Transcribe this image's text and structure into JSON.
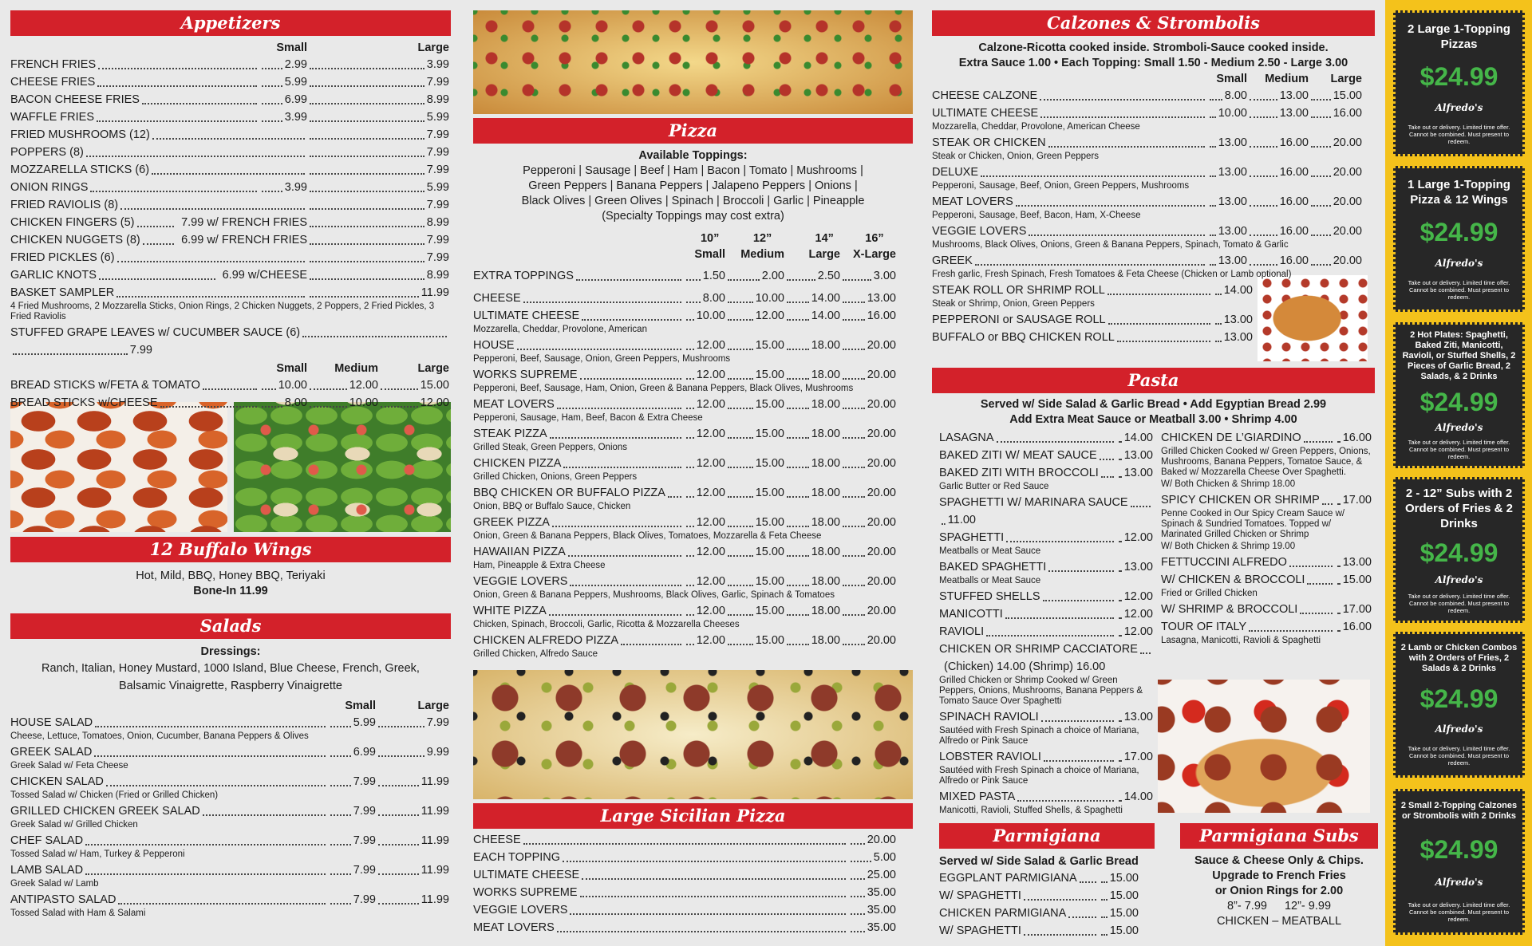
{
  "appetizers": {
    "title": "Appetizers",
    "groups": [
      {
        "headers": [
          "Small",
          "Large"
        ],
        "items": [
          {
            "name": "FRENCH FRIES",
            "prices": [
              "2.99",
              "3.99"
            ]
          },
          {
            "name": "CHEESE FRIES",
            "prices": [
              "5.99",
              "7.99"
            ]
          },
          {
            "name": "BACON CHEESE FRIES",
            "prices": [
              "6.99",
              "8.99"
            ]
          },
          {
            "name": "WAFFLE FRIES",
            "prices": [
              "3.99",
              "5.99"
            ]
          },
          {
            "name": "FRIED MUSHROOMS (12)",
            "prices": [
              "7.99"
            ]
          },
          {
            "name": "POPPERS (8)",
            "prices": [
              "7.99"
            ]
          },
          {
            "name": "MOZZARELLA STICKS (6)",
            "prices": [
              "7.99"
            ]
          },
          {
            "name": "ONION RINGS",
            "prices": [
              "3.99",
              "5.99"
            ]
          },
          {
            "name": "FRIED RAVIOLIS (8)",
            "prices": [
              "7.99"
            ]
          },
          {
            "name": "CHICKEN FINGERS (5)",
            "prices": [
              "7.99 w/ FRENCH FRIES",
              "8.99"
            ]
          },
          {
            "name": "CHICKEN NUGGETS (8)",
            "prices": [
              "6.99 w/ FRENCH FRIES",
              "7.99"
            ]
          },
          {
            "name": "FRIED PICKLES (6)",
            "prices": [
              "7.99"
            ]
          },
          {
            "name": "GARLIC KNOTS",
            "prices": [
              "6.99 w/CHEESE",
              "8.99"
            ]
          },
          {
            "name": "BASKET SAMPLER",
            "prices": [
              "11.99"
            ],
            "desc": "4 Fried Mushrooms, 2 Mozzarella Sticks, Onion Rings, 2 Chicken Nuggets, 2 Poppers, 2 Fried Pickles, 3 Fried Raviolis"
          },
          {
            "name": "STUFFED GRAPE LEAVES w/ CUCUMBER SAUCE (6)",
            "prices": [
              "7.99"
            ]
          }
        ]
      },
      {
        "headers": [
          "Small",
          "Medium",
          "Large"
        ],
        "items": [
          {
            "name": "BREAD STICKS w/FETA & TOMATO",
            "prices": [
              "10.00",
              "12.00",
              "15.00"
            ]
          },
          {
            "name": "BREAD STICKS w/CHEESE",
            "prices": [
              "8.00",
              "10.00",
              "12.00"
            ]
          }
        ]
      }
    ]
  },
  "wings": {
    "title": "12 Buffalo Wings",
    "flavors": "Hot, Mild, BBQ, Honey BBQ, Teriyaki",
    "price": "Bone-In 11.99"
  },
  "salads": {
    "title": "Salads",
    "dressings_label": "Dressings:",
    "dressings": "Ranch, Italian, Honey Mustard, 1000 Island, Blue Cheese, French, Greek, Balsamic Vinaigrette, Raspberry Vinaigrette",
    "headers": [
      "Small",
      "Large"
    ],
    "items": [
      {
        "name": "HOUSE SALAD",
        "prices": [
          "5.99",
          "7.99"
        ],
        "desc": "Cheese, Lettuce, Tomatoes, Onion, Cucumber, Banana Peppers & Olives"
      },
      {
        "name": "GREEK SALAD",
        "prices": [
          "6.99",
          "9.99"
        ],
        "desc": "Greek Salad w/ Feta Cheese"
      },
      {
        "name": "CHICKEN SALAD",
        "prices": [
          "7.99",
          "11.99"
        ],
        "desc": "Tossed Salad w/ Chicken (Fried or Grilled Chicken)"
      },
      {
        "name": "GRILLED CHICKEN GREEK SALAD",
        "prices": [
          "7.99",
          "11.99"
        ],
        "desc": "Greek Salad w/ Grilled Chicken"
      },
      {
        "name": "CHEF SALAD",
        "prices": [
          "7.99",
          "11.99"
        ],
        "desc": "Tossed Salad w/ Ham, Turkey & Pepperoni"
      },
      {
        "name": "LAMB SALAD",
        "prices": [
          "7.99",
          "11.99"
        ],
        "desc": "Greek Salad w/ Lamb"
      },
      {
        "name": "ANTIPASTO SALAD",
        "prices": [
          "7.99",
          "11.99"
        ],
        "desc": "Tossed Salad with Ham & Salami"
      }
    ]
  },
  "pizza": {
    "title": "Pizza",
    "toppings_label": "Available Toppings:",
    "toppings": [
      "Pepperoni | Sausage | Beef | Ham | Bacon | Tomato | Mushrooms |",
      "Green Peppers | Banana Peppers | Jalapeno Peppers | Onions |",
      "Black Olives | Green Olives | Spinach | Broccoli | Garlic | Pineapple"
    ],
    "note": "(Specialty Toppings may cost extra)",
    "headers": [
      {
        "size": "10”",
        "label": "Small"
      },
      {
        "size": "12”",
        "label": "Medium"
      },
      {
        "size": "14”",
        "label": "Large"
      },
      {
        "size": "16”",
        "label": "X-Large"
      }
    ],
    "extra": [
      {
        "name": "EXTRA TOPPINGS",
        "prices": [
          "1.50",
          "2.00",
          "2.50",
          "3.00"
        ]
      }
    ],
    "items": [
      {
        "name": "CHEESE",
        "prices": [
          "8.00",
          "10.00",
          "14.00",
          "13.00"
        ]
      },
      {
        "name": "ULTIMATE CHEESE",
        "prices": [
          "10.00",
          "12.00",
          "14.00",
          "16.00"
        ],
        "desc": "Mozzarella, Cheddar, Provolone, American"
      },
      {
        "name": "HOUSE",
        "prices": [
          "12.00",
          "15.00",
          "18.00",
          "20.00"
        ],
        "desc": "Pepperoni, Beef, Sausage, Onion, Green Peppers, Mushrooms"
      },
      {
        "name": "WORKS SUPREME",
        "prices": [
          "12.00",
          "15.00",
          "18.00",
          "20.00"
        ],
        "desc": "Pepperoni, Beef, Sausage, Ham, Onion, Green & Banana Peppers, Black Olives, Mushrooms"
      },
      {
        "name": "MEAT LOVERS",
        "prices": [
          "12.00",
          "15.00",
          "18.00",
          "20.00"
        ],
        "desc": "Pepperoni, Sausage, Ham, Beef, Bacon & Extra Cheese"
      },
      {
        "name": "STEAK PIZZA",
        "prices": [
          "12.00",
          "15.00",
          "18.00",
          "20.00"
        ],
        "desc": "Grilled Steak, Green Peppers, Onions"
      },
      {
        "name": "CHICKEN PIZZA",
        "prices": [
          "12.00",
          "15.00",
          "18.00",
          "20.00"
        ],
        "desc": "Grilled Chicken, Onions, Green Peppers"
      },
      {
        "name": "BBQ CHICKEN OR BUFFALO PIZZA",
        "prices": [
          "12.00",
          "15.00",
          "18.00",
          "20.00"
        ],
        "desc": "Onion, BBQ or Buffalo Sauce, Chicken"
      },
      {
        "name": "GREEK PIZZA",
        "prices": [
          "12.00",
          "15.00",
          "18.00",
          "20.00"
        ],
        "desc": "Onion, Green & Banana Peppers, Black Olives, Tomatoes, Mozzarella & Feta Cheese"
      },
      {
        "name": "HAWAIIAN PIZZA",
        "prices": [
          "12.00",
          "15.00",
          "18.00",
          "20.00"
        ],
        "desc": "Ham, Pineapple & Extra Cheese"
      },
      {
        "name": "VEGGIE LOVERS",
        "prices": [
          "12.00",
          "15.00",
          "18.00",
          "20.00"
        ],
        "desc": "Onion, Green & Banana Peppers, Mushrooms, Black Olives, Garlic, Spinach & Tomatoes"
      },
      {
        "name": "WHITE PIZZA",
        "prices": [
          "12.00",
          "15.00",
          "18.00",
          "20.00"
        ],
        "desc": "Chicken, Spinach, Broccoli, Garlic, Ricotta & Mozzarella Cheeses"
      },
      {
        "name": "CHICKEN ALFREDO PIZZA",
        "prices": [
          "12.00",
          "15.00",
          "18.00",
          "20.00"
        ],
        "desc": "Grilled Chicken, Alfredo Sauce"
      }
    ]
  },
  "sicilian": {
    "title": "Large Sicilian Pizza",
    "items": [
      {
        "name": "CHEESE",
        "prices": [
          "20.00"
        ]
      },
      {
        "name": "EACH TOPPING",
        "prices": [
          "5.00"
        ]
      },
      {
        "name": "ULTIMATE CHEESE",
        "prices": [
          "25.00"
        ]
      },
      {
        "name": "WORKS SUPREME",
        "prices": [
          "35.00"
        ]
      },
      {
        "name": "VEGGIE LOVERS",
        "prices": [
          "35.00"
        ]
      },
      {
        "name": "MEAT LOVERS",
        "prices": [
          "35.00"
        ]
      }
    ]
  },
  "calzones": {
    "title": "Calzones & Strombolis",
    "notes": [
      "Calzone-Ricotta cooked inside. Stromboli-Sauce cooked inside.",
      "Extra Sauce 1.00 • Each Topping: Small 1.50 - Medium 2.50 - Large 3.00"
    ],
    "headers": [
      "Small",
      "Medium",
      "Large"
    ],
    "items": [
      {
        "name": "CHEESE CALZONE",
        "prices": [
          "8.00",
          "13.00",
          "15.00"
        ]
      },
      {
        "name": "ULTIMATE CHEESE",
        "prices": [
          "10.00",
          "13.00",
          "16.00"
        ],
        "desc": "Mozzarella, Cheddar, Provolone, American Cheese"
      },
      {
        "name": "STEAK OR CHICKEN",
        "prices": [
          "13.00",
          "16.00",
          "20.00"
        ],
        "desc": "Steak or Chicken, Onion, Green Peppers"
      },
      {
        "name": "DELUXE",
        "prices": [
          "13.00",
          "16.00",
          "20.00"
        ],
        "desc": "Pepperoni, Sausage, Beef, Onion, Green Peppers, Mushrooms"
      },
      {
        "name": "MEAT LOVERS",
        "prices": [
          "13.00",
          "16.00",
          "20.00"
        ],
        "desc": "Pepperoni, Sausage, Beef, Bacon, Ham, X-Cheese"
      },
      {
        "name": "VEGGIE LOVERS",
        "prices": [
          "13.00",
          "16.00",
          "20.00"
        ],
        "desc": "Mushrooms, Black Olives, Onions, Green & Banana Peppers, Spinach, Tomato & Garlic"
      },
      {
        "name": "GREEK",
        "prices": [
          "13.00",
          "16.00",
          "20.00"
        ],
        "desc": "Fresh garlic, Fresh Spinach, Fresh Tomatoes & Feta Cheese (Chicken or Lamb optional)"
      }
    ],
    "rolls": [
      {
        "name": "STEAK ROLL OR SHRIMP ROLL",
        "prices": [
          "14.00"
        ],
        "desc": "Steak or Shrimp, Onion, Green Peppers"
      },
      {
        "name": "PEPPERONI or SAUSAGE ROLL",
        "prices": [
          "13.00"
        ]
      },
      {
        "name": "BUFFALO or BBQ CHICKEN ROLL",
        "prices": [
          "13.00"
        ]
      }
    ]
  },
  "pasta": {
    "title": "Pasta",
    "notes": [
      "Served w/ Side Salad & Garlic Bread • Add Egyptian Bread 2.99",
      "Add Extra Meat Sauce or Meatball 3.00 • Shrimp 4.00"
    ],
    "left": [
      {
        "name": "LASAGNA",
        "prices": [
          "14.00"
        ]
      },
      {
        "name": "BAKED ZITI W/ MEAT SAUCE",
        "prices": [
          "13.00"
        ]
      },
      {
        "name": "BAKED ZITI WITH BROCCOLI",
        "prices": [
          "13.00"
        ],
        "desc": "Garlic Butter or Red Sauce"
      },
      {
        "name": "SPAGHETTI W/ MARINARA SAUCE",
        "prices": [
          "11.00"
        ]
      },
      {
        "name": "SPAGHETTI",
        "prices": [
          "12.00"
        ],
        "desc": "Meatballs or Meat Sauce"
      },
      {
        "name": "BAKED SPAGHETTI",
        "prices": [
          "13.00"
        ],
        "desc": "Meatballs or Meat Sauce"
      },
      {
        "name": "STUFFED SHELLS",
        "prices": [
          "12.00"
        ]
      },
      {
        "name": "MANICOTTI",
        "prices": [
          "12.00"
        ]
      },
      {
        "name": "RAVIOLI",
        "prices": [
          "12.00"
        ]
      },
      {
        "name": "CHICKEN OR SHRIMP CACCIATORE",
        "prices": [
          "(Chicken) 14.00 (Shrimp) 16.00"
        ],
        "desc": "Grilled Chicken or Shrimp Cooked w/ Green Peppers, Onions, Mushrooms, Banana Peppers & Tomato Sauce Over Spaghetti"
      },
      {
        "name": "SPINACH RAVIOLI",
        "prices": [
          "13.00"
        ],
        "desc": "Sautéed with Fresh Spinach a choice of Mariana, Alfredo or Pink Sauce"
      },
      {
        "name": "LOBSTER RAVIOLI",
        "prices": [
          "17.00"
        ],
        "desc": "Sautéed with Fresh Spinach a choice of Mariana, Alfredo or Pink Sauce"
      },
      {
        "name": "MIXED PASTA",
        "prices": [
          "14.00"
        ],
        "desc": "Manicotti, Ravioli, Stuffed Shells, & Spaghetti"
      }
    ],
    "right": [
      {
        "name": "CHICKEN DE L’GIARDINO",
        "prices": [
          "16.00"
        ],
        "desc": "Grilled Chicken Cooked w/ Green Peppers, Onions, Mushrooms, Banana Peppers, Tomatoe Sauce, & Baked w/ Mozzarella Cheese Over Spaghetti.",
        "extra": "W/ Both Chicken & Shrimp 18.00"
      },
      {
        "name": "SPICY CHICKEN OR SHRIMP",
        "prices": [
          "17.00"
        ],
        "desc": "Penne Cooked in Our Spicy Cream Sauce w/ Spinach & Sundried Tomatoes. Topped w/ Marinated Grilled Chicken or Shrimp",
        "extra": "W/ Both Chicken & Shrimp 19.00"
      },
      {
        "name": "FETTUCCINI ALFREDO",
        "prices": [
          "13.00"
        ]
      },
      {
        "name": "W/ CHICKEN & BROCCOLI",
        "prices": [
          "15.00"
        ],
        "desc": "Fried or Grilled Chicken"
      },
      {
        "name": "W/ SHRIMP & BROCCOLI",
        "prices": [
          "17.00"
        ]
      },
      {
        "name": "TOUR OF ITALY",
        "prices": [
          "16.00"
        ],
        "desc": "Lasagna, Manicotti, Ravioli & Spaghetti"
      }
    ]
  },
  "parmigiana": {
    "title": "Parmigiana",
    "subtitle": "Served w/ Side Salad & Garlic Bread",
    "items": [
      {
        "name": "EGGPLANT PARMIGIANA",
        "prices": [
          "15.00"
        ]
      },
      {
        "name": "W/ SPAGHETTI",
        "prices": [
          "15.00"
        ]
      },
      {
        "name": "CHICKEN PARMIGIANA",
        "prices": [
          "15.00"
        ]
      },
      {
        "name": "W/ SPAGHETTI",
        "prices": [
          "15.00"
        ]
      }
    ]
  },
  "parmigiana_subs": {
    "title": "Parmigiana Subs",
    "lines": [
      "Sauce & Cheese Only & Chips.",
      "Upgrade to French Fries",
      "or Onion Rings for 2.00"
    ],
    "sizes": [
      "8”- 7.99",
      "12”- 9.99"
    ],
    "kinds": "CHICKEN – MEATBALL"
  },
  "coupons": [
    {
      "title": "2 Large 1-Topping Pizzas",
      "price": "$24.99",
      "brand": "Alfredo's",
      "fine_print": "Take out or delivery. Limited time offer. Cannot be combined. Must present to redeem."
    },
    {
      "title": "1 Large 1-Topping Pizza & 12 Wings",
      "price": "$24.99",
      "brand": "Alfredo's",
      "fine_print": "Take out or delivery. Limited time offer. Cannot be combined. Must present to redeem."
    },
    {
      "title": "2 Hot Plates: Spaghetti, Baked Ziti, Manicotti, Ravioli, or Stuffed Shells, 2 Pieces of Garlic Bread, 2 Salads, & 2 Drinks",
      "price": "$24.99",
      "brand": "Alfredo's",
      "fine_print": "Take out or delivery. Limited time offer. Cannot be combined. Must present to redeem."
    },
    {
      "title": "2 - 12” Subs with 2 Orders of Fries & 2 Drinks",
      "price": "$24.99",
      "brand": "Alfredo's",
      "fine_print": "Take out or delivery. Limited time offer. Cannot be combined. Must present to redeem."
    },
    {
      "title": "2 Lamb or Chicken Combos with 2 Orders of Fries, 2 Salads & 2 Drinks",
      "price": "$24.99",
      "brand": "Alfredo's",
      "fine_print": "Take out or delivery. Limited time offer. Cannot be combined. Must present to redeem."
    },
    {
      "title": "2 Small 2-Topping Calzones or Strombolis with 2 Drinks",
      "price": "$24.99",
      "brand": "Alfredo's",
      "fine_print": "Take out or delivery. Limited time offer. Cannot be combined. Must present to redeem."
    }
  ]
}
